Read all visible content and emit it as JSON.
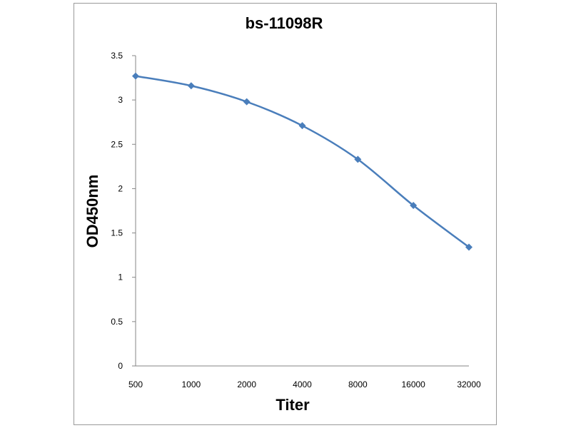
{
  "chart_data": {
    "type": "line",
    "title": "bs-11098R",
    "xlabel": "Titer",
    "ylabel": "OD450nm",
    "categories": [
      "500",
      "1000",
      "2000",
      "4000",
      "8000",
      "16000",
      "32000"
    ],
    "series": [
      {
        "values": [
          3.27,
          3.16,
          2.98,
          2.71,
          2.33,
          1.81,
          1.34
        ]
      }
    ],
    "ylim": [
      0,
      3.5
    ],
    "yticks": [
      "0",
      "0.5",
      "1",
      "1.5",
      "2",
      "2.5",
      "3",
      "3.5"
    ],
    "grid": false,
    "legend": "none",
    "colors": {
      "line": "#4a7ebb",
      "axis": "#868686",
      "frame": "#9a9a9a"
    }
  }
}
